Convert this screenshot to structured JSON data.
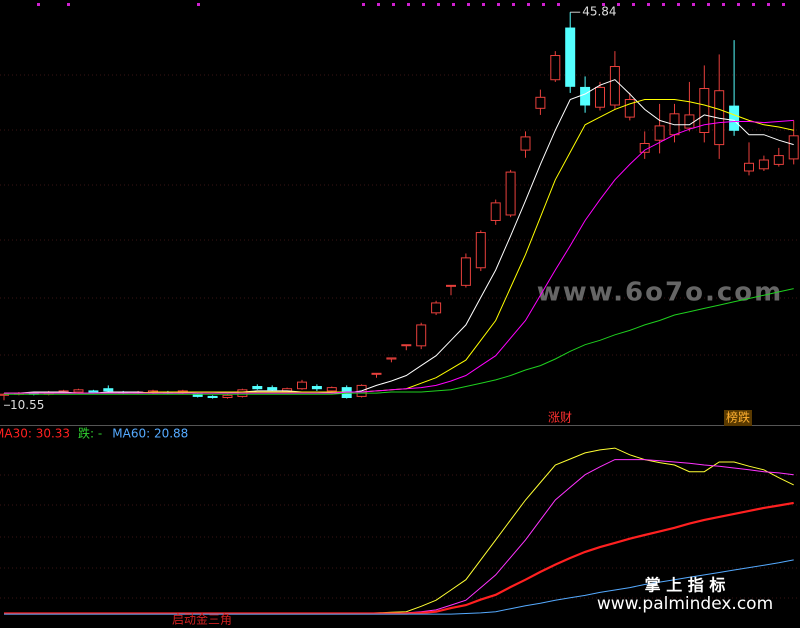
{
  "chart_data": [
    {
      "type": "candlestick",
      "open": [
        11.0,
        11.1,
        11.2,
        11.1,
        11.3,
        11.3,
        11.4,
        11.6,
        11.3,
        11.2,
        11.2,
        11.3,
        11.2,
        11.1,
        10.9,
        10.8,
        10.9,
        11.8,
        11.7,
        11.4,
        11.6,
        11.8,
        11.4,
        11.7,
        10.9,
        13.0,
        14.3,
        15.6,
        15.5,
        18.5,
        21.0,
        21.0,
        22.6,
        26.9,
        27.4,
        33.3,
        37.1,
        39.7,
        44.4,
        39.0,
        37.2,
        37.4,
        36.3,
        33.1,
        34.2,
        34.7,
        35.3,
        34.9,
        33.8,
        37.3,
        31.4,
        31.6,
        32.0,
        32.5
      ],
      "high": [
        11.2,
        11.3,
        11.3,
        11.4,
        11.5,
        11.6,
        11.5,
        11.9,
        11.4,
        11.4,
        11.5,
        11.4,
        11.5,
        11.2,
        11.0,
        11.1,
        11.6,
        12.0,
        11.9,
        11.7,
        12.4,
        12.0,
        11.8,
        11.9,
        12.0,
        13.0,
        14.4,
        15.6,
        17.6,
        19.6,
        21.0,
        23.9,
        26.0,
        28.8,
        31.5,
        35.0,
        38.8,
        42.3,
        45.84,
        40.0,
        39.5,
        42.3,
        38.5,
        35.0,
        37.5,
        37.5,
        39.5,
        41.0,
        42.0,
        43.3,
        34.0,
        32.8,
        33.5,
        36.0
      ],
      "low": [
        10.55,
        11.0,
        11.0,
        11.0,
        11.2,
        11.2,
        11.2,
        11.3,
        11.1,
        11.1,
        11.1,
        11.1,
        11.1,
        10.8,
        10.7,
        10.7,
        10.8,
        11.5,
        11.4,
        11.3,
        11.5,
        11.4,
        11.3,
        10.7,
        10.8,
        12.6,
        14.0,
        15.1,
        15.2,
        18.3,
        20.1,
        20.8,
        22.3,
        26.5,
        27.2,
        32.6,
        36.5,
        39.5,
        38.5,
        36.7,
        36.9,
        37.0,
        36.0,
        32.5,
        33.0,
        34.0,
        35.0,
        34.0,
        32.5,
        34.6,
        31.0,
        31.4,
        31.8,
        32.0
      ],
      "close": [
        11.1,
        11.2,
        11.1,
        11.3,
        11.4,
        11.5,
        11.3,
        11.4,
        11.2,
        11.3,
        11.4,
        11.2,
        11.4,
        10.9,
        10.8,
        11.0,
        11.5,
        11.6,
        11.5,
        11.6,
        12.2,
        11.6,
        11.7,
        10.8,
        11.9,
        13.0,
        14.4,
        15.6,
        17.4,
        19.4,
        21.0,
        23.5,
        25.8,
        28.5,
        31.3,
        34.5,
        38.1,
        41.9,
        39.1,
        37.4,
        39.0,
        40.9,
        37.9,
        33.9,
        35.5,
        36.6,
        36.5,
        38.9,
        38.7,
        35.1,
        32.1,
        32.4,
        32.8,
        34.6
      ],
      "up_color": "#e8403c",
      "down_color": "#54ffff",
      "ylim": [
        8.3,
        46.95
      ],
      "series": [
        {
          "color": "#ffffff",
          "values": [
            11.2,
            11.2,
            11.3,
            11.3,
            11.3,
            11.2,
            11.2,
            11.3,
            11.3,
            11.3,
            11.2,
            11.2,
            11.2,
            11.3,
            11.3,
            11.2,
            11.3,
            11.4,
            11.4,
            11.4,
            11.3,
            11.3,
            11.2,
            11.2,
            11.4,
            11.9,
            12.3,
            12.8,
            13.7,
            14.6,
            16.0,
            17.4,
            19.9,
            22.4,
            25.5,
            28.7,
            32.0,
            35.1,
            37.9,
            38.4,
            39.2,
            39.7,
            38.4,
            37.0,
            36.0,
            35.6,
            35.6,
            36.5,
            36.2,
            36.0,
            34.7,
            34.7,
            34.2,
            33.8
          ]
        },
        {
          "color": "#ffff00",
          "values": [
            11.2,
            11.2,
            11.2,
            11.2,
            11.2,
            11.2,
            11.2,
            11.2,
            11.2,
            11.2,
            11.3,
            11.3,
            11.3,
            11.3,
            11.3,
            11.3,
            11.3,
            11.3,
            11.3,
            11.3,
            11.3,
            11.3,
            11.3,
            11.3,
            11.3,
            11.4,
            11.5,
            11.6,
            12.1,
            12.6,
            13.4,
            14.2,
            16.0,
            17.8,
            20.8,
            23.8,
            27.2,
            30.6,
            33.1,
            35.6,
            36.3,
            37.0,
            37.5,
            37.9,
            37.9,
            37.9,
            37.7,
            37.4,
            37.0,
            36.5,
            36.0,
            35.6,
            35.4,
            35.1
          ]
        },
        {
          "color": "#ff00ff",
          "values": [
            11.2,
            11.2,
            11.2,
            11.2,
            11.2,
            11.2,
            11.2,
            11.2,
            11.2,
            11.2,
            11.2,
            11.2,
            11.2,
            11.2,
            11.2,
            11.2,
            11.2,
            11.2,
            11.2,
            11.2,
            11.2,
            11.2,
            11.2,
            11.3,
            11.3,
            11.4,
            11.5,
            11.6,
            11.7,
            11.9,
            12.3,
            12.8,
            13.7,
            14.6,
            16.2,
            17.8,
            20.1,
            22.4,
            24.6,
            26.9,
            28.8,
            30.6,
            32.0,
            33.3,
            34.0,
            34.7,
            35.2,
            35.6,
            35.8,
            35.9,
            35.9,
            35.8,
            35.9,
            36.0
          ]
        },
        {
          "color": "#1fd01f",
          "values": [
            11.1,
            11.1,
            11.1,
            11.1,
            11.1,
            11.1,
            11.1,
            11.1,
            11.1,
            11.1,
            11.1,
            11.1,
            11.1,
            11.1,
            11.1,
            11.1,
            11.1,
            11.1,
            11.1,
            11.1,
            11.1,
            11.1,
            11.1,
            11.2,
            11.2,
            11.2,
            11.3,
            11.3,
            11.3,
            11.4,
            11.5,
            11.8,
            12.1,
            12.4,
            12.8,
            13.3,
            13.7,
            14.3,
            15.0,
            15.6,
            16.0,
            16.5,
            16.9,
            17.4,
            17.8,
            18.3,
            18.6,
            18.9,
            19.2,
            19.5,
            19.8,
            20.1,
            20.4,
            20.7
          ]
        }
      ],
      "annotations": [
        "涨财",
        "榜跌"
      ]
    },
    {
      "type": "line",
      "ylim": [
        9.6,
        42.4
      ],
      "series": [
        {
          "color": "#ffff33",
          "values": [
            12.0,
            12.0,
            12.0,
            12.0,
            12.0,
            12.0,
            12.0,
            12.0,
            12.0,
            12.0,
            12.0,
            12.0,
            12.0,
            12.0,
            12.0,
            12.0,
            12.0,
            12.0,
            12.0,
            12.0,
            12.0,
            12.0,
            12.0,
            12.0,
            12.0,
            12.1,
            12.2,
            12.3,
            13.2,
            14.2,
            15.9,
            17.6,
            20.9,
            24.2,
            27.5,
            30.8,
            33.7,
            36.6,
            37.6,
            38.6,
            39.1,
            39.4,
            38.3,
            37.5,
            37.0,
            36.6,
            35.5,
            35.5,
            37.1,
            37.1,
            36.4,
            35.8,
            34.5,
            33.3
          ]
        },
        {
          "color": "#ff33ff",
          "values": [
            12.0,
            12.0,
            12.0,
            12.0,
            12.0,
            12.0,
            12.0,
            12.0,
            12.0,
            12.0,
            12.0,
            12.0,
            12.0,
            12.0,
            12.0,
            12.0,
            12.0,
            12.0,
            12.0,
            12.0,
            12.0,
            12.0,
            12.0,
            12.0,
            12.0,
            12.0,
            12.0,
            12.1,
            12.3,
            12.6,
            13.4,
            14.2,
            16.3,
            18.4,
            21.3,
            24.2,
            27.5,
            30.8,
            32.9,
            35.0,
            36.3,
            37.5,
            37.5,
            37.5,
            37.3,
            37.1,
            36.9,
            36.6,
            36.4,
            36.1,
            35.8,
            35.5,
            35.3,
            35.0
          ]
        },
        {
          "name": "MA30: 30.33",
          "color": "#ff2020",
          "values": [
            12.0,
            12.0,
            12.0,
            12.0,
            12.0,
            12.0,
            12.0,
            12.0,
            12.0,
            12.0,
            12.0,
            12.0,
            12.0,
            12.0,
            12.0,
            12.0,
            12.0,
            12.0,
            12.0,
            12.0,
            12.0,
            12.0,
            12.0,
            12.0,
            12.0,
            12.0,
            12.0,
            12.0,
            12.1,
            12.3,
            12.9,
            13.4,
            14.3,
            15.1,
            16.4,
            17.6,
            18.9,
            20.1,
            21.2,
            22.2,
            23.0,
            23.7,
            24.4,
            25.0,
            25.6,
            26.2,
            26.9,
            27.5,
            28.0,
            28.5,
            29.0,
            29.5,
            29.9,
            30.33
          ]
        },
        {
          "name": "MA60: 20.88",
          "color": "#55aaff",
          "values": [
            11.9,
            11.9,
            11.9,
            11.9,
            11.9,
            11.9,
            11.9,
            11.9,
            11.9,
            11.9,
            11.9,
            11.9,
            11.9,
            11.9,
            11.9,
            11.9,
            11.9,
            11.9,
            11.9,
            11.9,
            11.9,
            11.9,
            11.9,
            11.9,
            11.9,
            11.9,
            11.9,
            11.9,
            11.9,
            11.9,
            11.9,
            12.0,
            12.1,
            12.3,
            12.8,
            13.3,
            13.7,
            14.2,
            14.6,
            15.0,
            15.5,
            15.9,
            16.3,
            16.8,
            17.2,
            17.6,
            18.0,
            18.4,
            18.8,
            19.2,
            19.6,
            20.0,
            20.4,
            20.88
          ]
        }
      ],
      "legend_extra": "跌: -",
      "annotations": [
        "启动金三角"
      ]
    }
  ],
  "watermarks": [
    "www.6o7o.com",
    "掌 上 指 标",
    "www.palmindex.com"
  ]
}
